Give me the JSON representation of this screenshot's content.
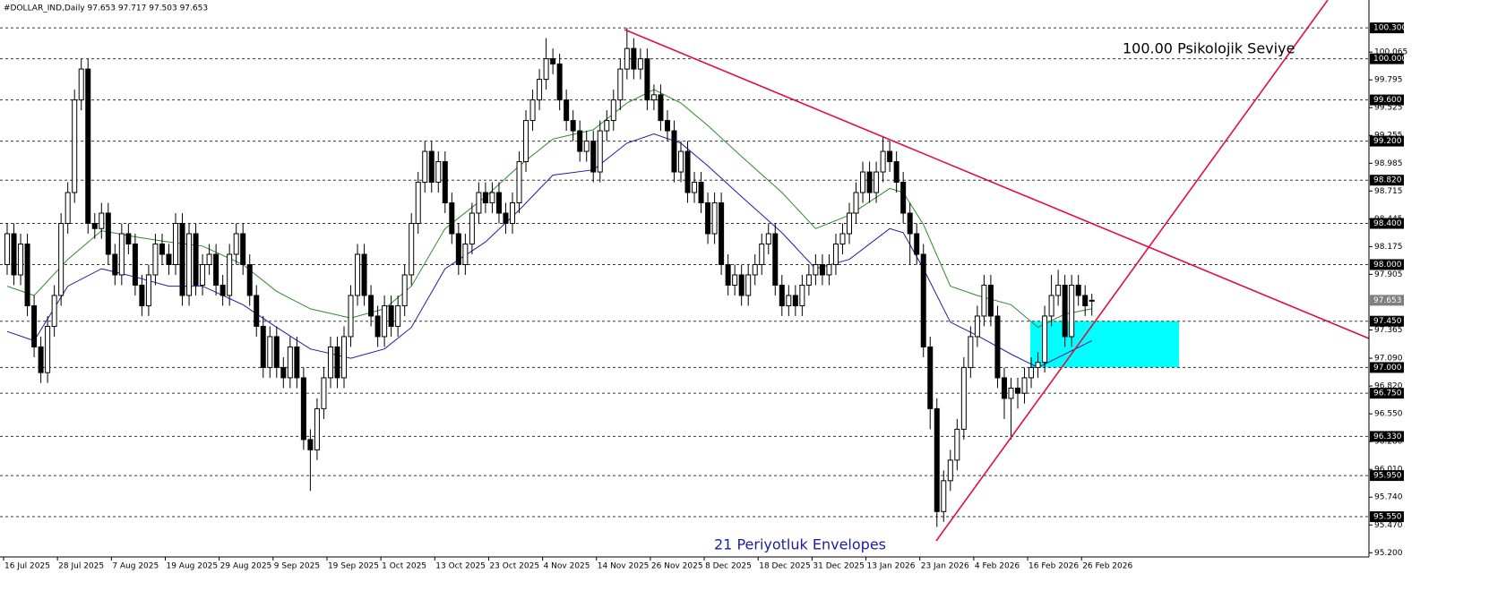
{
  "chart_data": {
    "type": "candlestick",
    "title": "#DOLLAR_IND,Daily  97.653 97.717 97.503 97.653",
    "annotations": [
      "100.00 Psikolojik Seviye",
      "21 Periyotluk Envelopes"
    ],
    "categories": [
      "16 Jul 2025",
      null,
      null,
      null,
      null,
      null,
      null,
      null,
      "28 Jul 2025",
      null,
      null,
      null,
      null,
      null,
      null,
      null,
      "7 Aug 2025",
      null,
      null,
      null,
      null,
      null,
      null,
      null,
      "19 Aug 2025",
      null,
      null,
      null,
      null,
      null,
      null,
      null,
      "29 Aug 2025",
      null,
      null,
      null,
      null,
      null,
      null,
      null,
      "9 Sep 2025",
      null,
      null,
      null,
      null,
      null,
      null,
      null,
      "19 Sep 2025",
      null,
      null,
      null,
      null,
      null,
      null,
      null,
      "1 Oct 2025",
      null,
      null,
      null,
      null,
      null,
      null,
      null,
      "13 Oct 2025",
      null,
      null,
      null,
      null,
      null,
      null,
      null,
      "23 Oct 2025",
      null,
      null,
      null,
      null,
      null,
      null,
      null,
      "4 Nov 2025",
      null,
      null,
      null,
      null,
      null,
      null,
      null,
      "14 Nov 2025",
      null,
      null,
      null,
      null,
      null,
      null,
      null,
      "26 Nov 2025",
      null,
      null,
      null,
      null,
      null,
      null,
      null,
      "8 Dec 2025",
      null,
      null,
      null,
      null,
      null,
      null,
      null,
      "18 Dec 2025",
      null,
      null,
      null,
      null,
      null,
      null,
      null,
      "31 Dec 2025",
      null,
      null,
      null,
      null,
      null,
      null,
      null,
      "13 Jan 2026",
      null,
      null,
      null,
      null,
      null,
      null,
      null,
      "23 Jan 2026",
      null,
      null,
      null,
      null,
      null,
      null,
      null,
      "4 Feb 2026",
      null,
      null,
      null,
      null,
      null,
      null,
      null,
      "16 Feb 2026",
      null,
      null,
      null,
      null,
      null,
      null,
      null,
      "26 Feb 2026",
      null
    ],
    "open": [
      98.0,
      98.3,
      97.9,
      98.2,
      97.6,
      97.2,
      96.95,
      97.4,
      97.7,
      98.4,
      98.7,
      99.6,
      99.9,
      98.4,
      98.35,
      98.5,
      98.1,
      97.9,
      98.3,
      98.2,
      97.8,
      97.6,
      97.9,
      98.2,
      98.1,
      98.0,
      98.4,
      97.7,
      98.3,
      97.8,
      98.0,
      98.1,
      97.8,
      97.7,
      98.1,
      98.3,
      98.0,
      97.7,
      97.4,
      97.0,
      97.3,
      97.0,
      96.9,
      97.2,
      96.9,
      96.3,
      96.2,
      96.6,
      96.9,
      97.2,
      96.9,
      97.3,
      97.7,
      98.1,
      97.7,
      97.5,
      97.3,
      97.6,
      97.4,
      97.6,
      97.9,
      98.4,
      98.8,
      99.1,
      98.8,
      99.0,
      98.6,
      98.3,
      98.0,
      98.2,
      98.5,
      98.7,
      98.6,
      98.7,
      98.5,
      98.4,
      98.6,
      99.0,
      99.4,
      99.6,
      99.8,
      100.0,
      99.95,
      99.6,
      99.4,
      99.3,
      99.1,
      99.2,
      98.9,
      99.3,
      99.4,
      99.6,
      99.9,
      100.1,
      99.9,
      100.0,
      99.6,
      99.65,
      99.4,
      99.3,
      98.9,
      99.1,
      98.7,
      98.8,
      98.6,
      98.3,
      98.6,
      98.0,
      97.8,
      97.9,
      97.7,
      97.9,
      98.0,
      98.2,
      98.3,
      97.8,
      97.6,
      97.7,
      97.6,
      97.8,
      97.9,
      98.0,
      97.9,
      98.0,
      98.2,
      98.3,
      98.5,
      98.7,
      98.9,
      98.7,
      98.9,
      99.1,
      99.0,
      98.8,
      98.5,
      98.3,
      98.1,
      97.2,
      96.6,
      95.6,
      95.9,
      96.1,
      96.4,
      97.0,
      97.3,
      97.5,
      97.8,
      97.5,
      96.9,
      96.7,
      96.8,
      96.75,
      96.9,
      97.0,
      97.05,
      97.5,
      97.7,
      97.8,
      97.3,
      97.8,
      97.7,
      97.653
    ],
    "high": [
      98.4,
      98.4,
      98.3,
      98.3,
      97.7,
      97.3,
      97.5,
      97.8,
      98.5,
      98.8,
      99.7,
      100.0,
      100.0,
      98.5,
      98.6,
      98.6,
      98.2,
      98.4,
      98.4,
      98.3,
      97.9,
      98.0,
      98.3,
      98.3,
      98.2,
      98.5,
      98.5,
      98.4,
      98.4,
      98.1,
      98.2,
      98.2,
      97.9,
      98.2,
      98.4,
      98.4,
      98.1,
      97.8,
      97.5,
      97.4,
      97.4,
      97.1,
      97.3,
      97.3,
      97.0,
      96.4,
      96.7,
      97.0,
      97.3,
      97.3,
      97.4,
      97.8,
      98.2,
      98.2,
      97.8,
      97.6,
      97.7,
      97.7,
      97.7,
      98.0,
      98.5,
      98.9,
      99.2,
      99.2,
      99.1,
      99.1,
      98.7,
      98.4,
      98.3,
      98.6,
      98.8,
      98.8,
      98.8,
      98.8,
      98.6,
      98.7,
      99.1,
      99.5,
      99.7,
      99.9,
      100.2,
      100.1,
      100.05,
      99.7,
      99.5,
      99.4,
      99.3,
      99.3,
      99.4,
      99.5,
      99.7,
      100.0,
      100.3,
      100.2,
      100.1,
      100.1,
      99.75,
      99.75,
      99.5,
      99.4,
      99.2,
      99.2,
      98.9,
      98.9,
      98.7,
      98.7,
      98.7,
      98.1,
      98.0,
      98.0,
      98.0,
      98.1,
      98.3,
      98.4,
      98.4,
      97.9,
      97.8,
      97.8,
      97.9,
      98.0,
      98.1,
      98.1,
      98.1,
      98.3,
      98.4,
      98.6,
      98.8,
      99.0,
      99.0,
      99.0,
      99.25,
      99.2,
      99.1,
      98.9,
      98.6,
      98.4,
      98.2,
      97.3,
      96.7,
      96.0,
      96.2,
      96.5,
      97.1,
      97.4,
      97.6,
      97.9,
      97.9,
      97.6,
      97.0,
      96.9,
      96.9,
      97.0,
      97.1,
      97.15,
      97.6,
      97.9,
      97.95,
      97.9,
      97.9,
      97.9,
      97.8,
      97.717
    ],
    "low": [
      97.9,
      97.8,
      97.8,
      97.5,
      97.1,
      96.85,
      96.85,
      97.3,
      97.6,
      98.3,
      98.6,
      99.5,
      98.3,
      98.25,
      98.25,
      98.0,
      97.8,
      97.8,
      98.1,
      97.7,
      97.5,
      97.5,
      97.8,
      98.0,
      97.9,
      97.9,
      97.6,
      97.6,
      97.7,
      97.7,
      97.9,
      97.7,
      97.6,
      97.6,
      98.0,
      97.9,
      97.6,
      97.3,
      96.9,
      96.9,
      96.9,
      96.8,
      96.8,
      96.8,
      96.2,
      95.8,
      96.1,
      96.5,
      96.8,
      96.8,
      96.8,
      97.2,
      97.6,
      97.6,
      97.4,
      97.2,
      97.2,
      97.3,
      97.3,
      97.5,
      97.8,
      98.3,
      98.7,
      98.7,
      98.7,
      98.5,
      98.2,
      97.9,
      97.9,
      98.1,
      98.4,
      98.5,
      98.5,
      98.4,
      98.3,
      98.3,
      98.5,
      98.9,
      99.3,
      99.5,
      99.7,
      99.85,
      99.5,
      99.3,
      99.2,
      99.0,
      99.0,
      98.8,
      98.8,
      99.2,
      99.3,
      99.5,
      99.8,
      99.8,
      99.8,
      99.5,
      99.5,
      99.3,
      99.2,
      98.8,
      98.8,
      98.6,
      98.6,
      98.5,
      98.2,
      98.2,
      97.9,
      97.7,
      97.7,
      97.6,
      97.6,
      97.8,
      97.9,
      98.1,
      97.7,
      97.5,
      97.5,
      97.5,
      97.5,
      97.7,
      97.8,
      97.8,
      97.8,
      97.9,
      98.1,
      98.2,
      98.4,
      98.6,
      98.6,
      98.6,
      98.8,
      98.9,
      98.7,
      98.4,
      98.0,
      98.0,
      97.1,
      96.4,
      95.45,
      95.5,
      95.8,
      96.0,
      96.3,
      96.9,
      97.2,
      97.4,
      97.4,
      96.8,
      96.5,
      96.3,
      96.6,
      96.65,
      96.8,
      96.9,
      96.95,
      97.4,
      97.6,
      97.2,
      97.2,
      97.6,
      97.5,
      97.503
    ],
    "close": [
      98.3,
      97.9,
      98.2,
      97.6,
      97.2,
      96.95,
      97.4,
      97.7,
      98.4,
      98.7,
      99.6,
      99.9,
      98.4,
      98.35,
      98.5,
      98.1,
      97.9,
      98.3,
      98.2,
      97.8,
      97.6,
      97.9,
      98.2,
      98.1,
      98.0,
      98.4,
      97.7,
      98.3,
      97.8,
      98.0,
      98.1,
      97.8,
      97.7,
      98.1,
      98.3,
      98.0,
      97.7,
      97.4,
      97.0,
      97.3,
      97.0,
      96.9,
      97.2,
      96.9,
      96.3,
      96.2,
      96.6,
      96.9,
      97.2,
      96.9,
      97.3,
      97.7,
      98.1,
      97.7,
      97.5,
      97.3,
      97.6,
      97.4,
      97.6,
      97.9,
      98.4,
      98.8,
      99.1,
      98.8,
      99.0,
      98.6,
      98.3,
      98.0,
      98.2,
      98.5,
      98.7,
      98.6,
      98.7,
      98.5,
      98.4,
      98.6,
      99.0,
      99.4,
      99.6,
      99.8,
      100.0,
      99.95,
      99.6,
      99.4,
      99.3,
      99.1,
      99.2,
      98.9,
      99.3,
      99.4,
      99.6,
      99.9,
      100.1,
      99.9,
      100.0,
      99.6,
      99.65,
      99.4,
      99.3,
      98.9,
      99.1,
      98.7,
      98.8,
      98.6,
      98.3,
      98.6,
      98.0,
      97.8,
      97.9,
      97.7,
      97.9,
      98.0,
      98.2,
      98.3,
      97.8,
      97.6,
      97.7,
      97.6,
      97.8,
      97.9,
      98.0,
      97.9,
      98.0,
      98.2,
      98.3,
      98.5,
      98.7,
      98.9,
      98.7,
      98.9,
      99.1,
      99.0,
      98.8,
      98.5,
      98.3,
      98.1,
      97.2,
      96.6,
      95.6,
      95.9,
      96.1,
      96.4,
      97.0,
      97.3,
      97.5,
      97.8,
      97.5,
      96.9,
      96.7,
      96.8,
      96.75,
      96.9,
      97.0,
      97.05,
      97.5,
      97.7,
      97.8,
      97.3,
      97.8,
      97.7,
      97.6,
      97.653
    ],
    "bull_color": "#ffffff",
    "bear_color": "#000000",
    "series": [
      {
        "color": "#2e8b2e",
        "x": [
          0,
          4,
          9,
          14,
          19,
          24,
          29,
          35,
          40,
          45,
          51,
          56,
          60,
          65,
          71,
          76,
          81,
          87,
          92,
          96,
          100,
          104,
          109,
          115,
          120,
          125,
          131,
          133,
          136,
          140,
          144,
          149,
          153,
          157,
          161
        ],
        "values": [
          97.79,
          97.7,
          98.05,
          98.33,
          98.27,
          98.22,
          98.18,
          98.0,
          97.74,
          97.57,
          97.48,
          97.57,
          97.79,
          98.35,
          98.66,
          98.96,
          99.22,
          99.31,
          99.57,
          99.7,
          99.57,
          99.35,
          99.05,
          98.7,
          98.35,
          98.48,
          98.74,
          98.7,
          98.39,
          97.79,
          97.7,
          97.61,
          97.39,
          97.52,
          97.57
        ]
      },
      {
        "color": "#1c1ca8",
        "x": [
          0,
          4,
          9,
          14,
          19,
          24,
          29,
          35,
          40,
          45,
          51,
          56,
          60,
          65,
          71,
          76,
          81,
          87,
          92,
          96,
          100,
          104,
          109,
          115,
          120,
          125,
          131,
          133,
          136,
          140,
          144,
          149,
          153,
          157,
          161
        ],
        "values": [
          97.35,
          97.26,
          97.79,
          97.96,
          97.88,
          97.79,
          97.79,
          97.61,
          97.39,
          97.18,
          97.09,
          97.18,
          97.39,
          97.96,
          98.22,
          98.53,
          98.87,
          98.92,
          99.18,
          99.27,
          99.18,
          98.96,
          98.66,
          98.31,
          97.96,
          98.05,
          98.35,
          98.31,
          97.96,
          97.44,
          97.31,
          97.13,
          97.0,
          97.13,
          97.26
        ]
      }
    ],
    "ylim": [
      95.159,
      100.571
    ],
    "yticks": [
      100.065,
      99.795,
      99.525,
      99.255,
      98.985,
      98.715,
      98.445,
      98.175,
      97.905,
      97.365,
      {
        "value": 97.09,
        "label": "97.090"
      },
      {
        "value": 96.82,
        "label": "96.820"
      },
      {
        "value": 96.55,
        "label": "96.550"
      },
      {
        "value": 96.28,
        "label": "96.280"
      },
      {
        "value": 96.01,
        "label": "96.010"
      },
      {
        "value": 95.74,
        "label": "95.740"
      },
      {
        "value": 95.47,
        "label": "95.470"
      },
      {
        "value": 95.2,
        "label": "95.200"
      }
    ],
    "levels": [
      {
        "value": 100.3,
        "label": "100.300"
      },
      {
        "value": 100.0,
        "label": "100.000"
      },
      {
        "value": 99.6,
        "label": "99.600"
      },
      {
        "value": 99.2,
        "label": "99.200"
      },
      {
        "value": 98.82,
        "label": "98.820"
      },
      {
        "value": 98.4,
        "label": "98.400"
      },
      {
        "value": 98.0,
        "label": "98.000"
      },
      {
        "value": 97.45,
        "label": "97.450"
      },
      {
        "value": 97.0,
        "label": "97.000"
      },
      {
        "value": 96.75,
        "label": "96.750"
      },
      {
        "value": 96.33,
        "label": "96.330"
      },
      {
        "value": 95.95,
        "label": "95.950"
      },
      {
        "value": 95.55,
        "label": "95.550"
      }
    ],
    "last_price": 97.653
  }
}
